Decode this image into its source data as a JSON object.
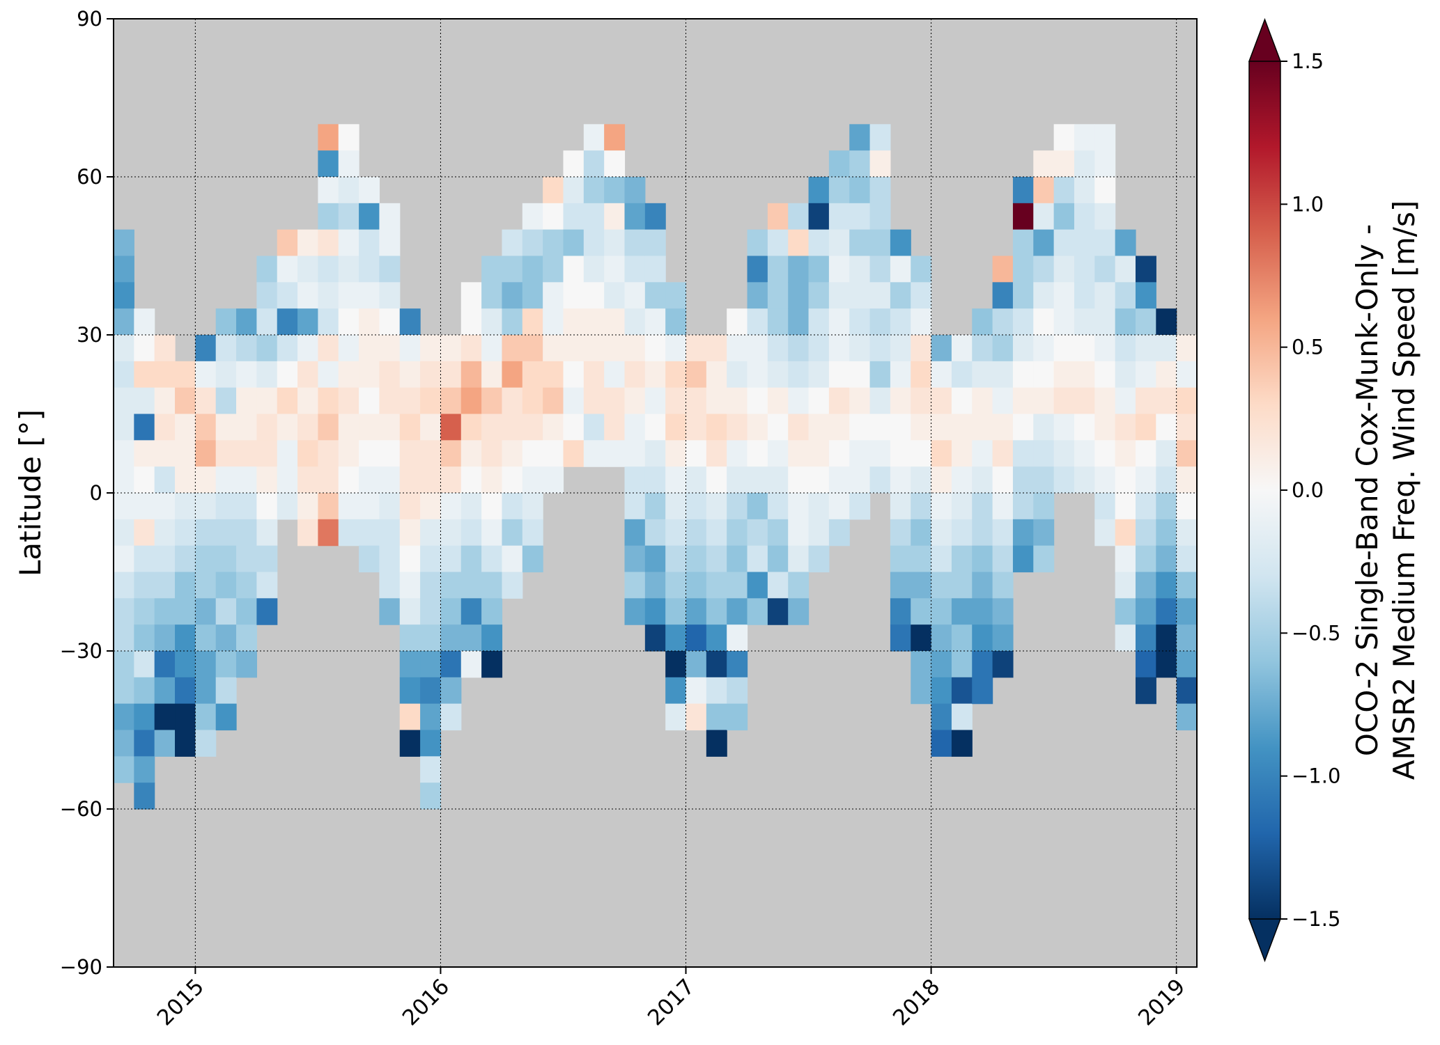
{
  "chart_data": {
    "type": "heatmap",
    "title": "",
    "xlabel": "",
    "ylabel": "Latitude [°]",
    "xlim": [
      "2014-09-01",
      "2019-02-01"
    ],
    "ylim": [
      -90,
      90
    ],
    "x_ticks": [
      "2015",
      "2016",
      "2017",
      "2018",
      "2019"
    ],
    "y_ticks": [
      90,
      60,
      30,
      0,
      -30,
      -60,
      -90
    ],
    "grid": true,
    "background_color": "#c8c8c8",
    "colormap": "RdBu_r",
    "colorbar": {
      "label_line1": "OCO-2 Single-Band Cox-Munk-Only -",
      "label_line2": "AMSR2 Medium Freq. Wind Speed [m/s]",
      "vmin": -1.5,
      "vmax": 1.5,
      "extend": "both",
      "ticks": [
        "1.5",
        "1.0",
        "0.5",
        "0.0",
        "−0.5",
        "−1.0",
        "−1.5"
      ]
    },
    "cell_height_deg": 5,
    "columns": [
      {
        "month": "2014-09",
        "lat_max": 50,
        "values": [
          -0.7,
          -0.8,
          -0.9,
          -0.7,
          -0.2,
          -0.3,
          -0.2,
          -0.2,
          -0.1,
          -0.1,
          -0.1,
          -0.2,
          -0.1,
          -0.3,
          -0.4,
          -0.4,
          -0.5,
          -0.5,
          -0.8,
          -0.7,
          -0.6
        ]
      },
      {
        "month": "2014-10",
        "lat_max": 35,
        "values": [
          -0.1,
          0.0,
          0.3,
          -0.2,
          -1.1,
          0.1,
          0.0,
          -0.1,
          0.2,
          -0.3,
          -0.4,
          -0.5,
          -0.6,
          -0.3,
          -0.6,
          -0.9,
          -1.1,
          -0.8,
          -1.0
        ]
      },
      {
        "month": "2014-11",
        "lat_max": 30,
        "values": [
          0.2,
          0.3,
          0.1,
          0.2,
          0.1,
          -0.3,
          -0.1,
          -0.2,
          -0.3,
          -0.4,
          -0.6,
          -0.7,
          -1.1,
          -0.8,
          -1.5,
          -0.7
        ]
      },
      {
        "month": "2014-12",
        "lat_max": 25,
        "values": [
          0.3,
          0.4,
          0.1,
          0.1,
          0.1,
          -0.2,
          -0.3,
          -0.4,
          -0.6,
          -0.6,
          -0.9,
          -0.9,
          -1.1,
          -1.5,
          -1.6
        ]
      },
      {
        "month": "2015-01",
        "lat_max": 30,
        "values": [
          -1.0,
          -0.1,
          0.2,
          0.4,
          0.5,
          0.1,
          -0.2,
          -0.4,
          -0.5,
          -0.5,
          -0.7,
          -0.6,
          -0.8,
          -0.8,
          -0.6,
          -0.4
        ]
      },
      {
        "month": "2015-02",
        "lat_max": 35,
        "values": [
          -0.6,
          -0.3,
          -0.2,
          -0.4,
          0.1,
          0.2,
          -0.1,
          -0.3,
          -0.4,
          -0.5,
          -0.6,
          -0.4,
          -0.7,
          -0.6,
          -0.4,
          -0.9
        ]
      },
      {
        "month": "2015-03",
        "lat_max": 35,
        "values": [
          -0.8,
          -0.4,
          -0.1,
          0.1,
          0.1,
          0.2,
          -0.1,
          -0.3,
          -0.4,
          -0.4,
          -0.5,
          -0.6,
          -0.5,
          -0.7
        ]
      },
      {
        "month": "2015-04",
        "lat_max": 45,
        "values": [
          -0.5,
          -0.4,
          -0.3,
          -0.5,
          -0.2,
          0.1,
          0.2,
          0.2,
          0.1,
          0.0,
          -0.2,
          -0.4,
          -0.3,
          -1.1
        ]
      },
      {
        "month": "2015-05",
        "lat_max": 50,
        "values": [
          0.4,
          -0.1,
          -0.3,
          -1.0,
          -0.3,
          0.0,
          0.3,
          0.1,
          -0.1,
          -0.1,
          -0.2
        ]
      },
      {
        "month": "2015-06",
        "lat_max": 50,
        "values": [
          0.1,
          -0.2,
          -0.1,
          -0.8,
          -0.1,
          0.2,
          0.1,
          0.2,
          0.3,
          0.2,
          0.1,
          0.2
        ]
      },
      {
        "month": "2015-07",
        "lat_max": 70,
        "values": [
          0.6,
          -0.9,
          -0.1,
          -0.5,
          0.2,
          -0.3,
          -0.2,
          -0.3,
          0.2,
          -0.1,
          0.3,
          0.4,
          0.2,
          0.2,
          0.4,
          0.8
        ]
      },
      {
        "month": "2015-08",
        "lat_max": 70,
        "values": [
          0.0,
          -0.1,
          -0.2,
          -0.4,
          -0.1,
          -0.2,
          -0.1,
          0.0,
          -0.1,
          0.1,
          0.2,
          0.1,
          0.1,
          0.0,
          -0.1,
          -0.3
        ]
      },
      {
        "month": "2015-09",
        "lat_max": 60,
        "values": [
          -0.1,
          -0.9,
          -0.3,
          -0.3,
          -0.1,
          0.1,
          0.1,
          0.1,
          0.0,
          0.1,
          0.0,
          -0.1,
          -0.1,
          -0.3,
          -0.4
        ]
      },
      {
        "month": "2015-10",
        "lat_max": 55,
        "values": [
          -0.1,
          -0.1,
          -0.4,
          -0.2,
          0.0,
          0.1,
          0.2,
          0.2,
          0.1,
          0.0,
          -0.1,
          -0.2,
          -0.3,
          -0.3,
          -0.3,
          -0.7
        ]
      },
      {
        "month": "2015-11",
        "lat_max": 35,
        "values": [
          -1.0,
          -0.1,
          0.1,
          0.2,
          0.3,
          0.2,
          0.2,
          0.2,
          0.1,
          0.0,
          -0.1,
          -0.2,
          -0.5,
          -0.8,
          -0.9,
          0.3,
          -1.5
        ]
      },
      {
        "month": "2015-12",
        "lat_max": 30,
        "values": [
          0.1,
          0.2,
          0.3,
          0.1,
          0.2,
          0.2,
          0.1,
          -0.2,
          -0.3,
          -0.4,
          -0.4,
          -0.5,
          -0.8,
          -1.0,
          -0.8,
          -0.9,
          -0.3,
          -0.5
        ]
      },
      {
        "month": "2016-01",
        "lat_max": 30,
        "values": [
          0.1,
          0.2,
          0.4,
          0.9,
          0.4,
          0.2,
          -0.1,
          -0.2,
          -0.3,
          -0.5,
          -0.6,
          -0.7,
          -1.1,
          -0.7,
          -0.3
        ]
      },
      {
        "month": "2016-02",
        "lat_max": 40,
        "values": [
          0.0,
          0.0,
          0.2,
          0.5,
          0.6,
          0.3,
          0.1,
          0.0,
          -0.2,
          -0.3,
          -0.5,
          -0.5,
          -1.0,
          -0.7,
          -0.1
        ]
      },
      {
        "month": "2016-03",
        "lat_max": 45,
        "values": [
          -0.5,
          -0.5,
          -0.2,
          -0.1,
          0.1,
          0.4,
          0.2,
          0.2,
          0.1,
          0.0,
          -0.1,
          -0.3,
          -0.5,
          -0.6,
          -0.9,
          -1.5
        ]
      },
      {
        "month": "2016-04",
        "lat_max": 50,
        "values": [
          -0.3,
          -0.5,
          -0.7,
          -0.5,
          0.4,
          0.6,
          0.2,
          0.2,
          0.1,
          0.0,
          -0.3,
          -0.5,
          -0.1,
          -0.3
        ]
      },
      {
        "month": "2016-05",
        "lat_max": 55,
        "values": [
          -0.1,
          -0.4,
          -0.6,
          -0.6,
          0.3,
          0.4,
          0.3,
          0.3,
          0.2,
          0.0,
          -0.1,
          -0.2,
          -0.3,
          -0.6
        ]
      },
      {
        "month": "2016-06",
        "lat_max": 60,
        "values": [
          0.3,
          0.0,
          -0.5,
          -0.5,
          -0.1,
          -0.1,
          0.1,
          0.3,
          0.4,
          0.1,
          0.0,
          -0.1
        ]
      },
      {
        "month": "2016-07",
        "lat_max": 65,
        "values": [
          0.0,
          -0.2,
          -0.3,
          -0.6,
          0.0,
          0.0,
          0.1,
          0.1,
          0.0,
          -0.1,
          0.0,
          0.3
        ]
      },
      {
        "month": "2016-08",
        "lat_max": 70,
        "values": [
          -0.1,
          -0.4,
          -0.5,
          -0.3,
          -0.3,
          -0.2,
          0.0,
          0.1,
          0.1,
          0.2,
          0.2,
          -0.3,
          -0.1
        ]
      },
      {
        "month": "2016-09",
        "lat_max": 70,
        "values": [
          0.6,
          0.0,
          -0.6,
          0.1,
          -0.2,
          -0.1,
          -0.2,
          0.1,
          0.1,
          -0.1,
          0.2,
          0.2,
          -0.1
        ]
      },
      {
        "month": "2016-10",
        "lat_max": 60,
        "values": [
          -0.7,
          -0.8,
          -0.4,
          -0.3,
          -0.1,
          -0.2,
          0.1,
          0.2,
          0.1,
          -0.1,
          -0.1,
          -0.3,
          -0.3,
          -0.8,
          -0.7,
          -0.5,
          -0.8
        ]
      },
      {
        "month": "2016-11",
        "lat_max": 55,
        "values": [
          -1.0,
          -0.4,
          -0.3,
          -0.5,
          -0.1,
          0.0,
          0.1,
          -0.1,
          0.0,
          -0.2,
          -0.3,
          -0.5,
          -0.4,
          -0.8,
          -0.7,
          -0.9,
          -1.4
        ]
      },
      {
        "month": "2016-12",
        "lat_max": 40,
        "values": [
          -0.5,
          -0.6,
          -0.1,
          0.3,
          0.2,
          0.3,
          0.1,
          -0.1,
          -0.2,
          -0.3,
          -0.4,
          -0.5,
          -0.6,
          -0.9,
          -1.5,
          -0.9,
          -0.2
        ]
      },
      {
        "month": "2017-01",
        "lat_max": 30,
        "values": [
          0.2,
          0.4,
          0.2,
          0.2,
          0.0,
          -0.2,
          -0.3,
          -0.4,
          -0.5,
          -0.6,
          -0.8,
          -1.2,
          -0.7,
          -0.1,
          0.2
        ]
      },
      {
        "month": "2017-02",
        "lat_max": 30,
        "values": [
          0.2,
          0.1,
          0.1,
          0.3,
          0.2,
          0.0,
          -0.2,
          -0.3,
          -0.4,
          -0.5,
          -0.6,
          -0.9,
          -1.4,
          -0.3,
          -0.6,
          -1.5
        ]
      },
      {
        "month": "2017-03",
        "lat_max": 35,
        "values": [
          0.0,
          -0.1,
          -0.2,
          0.1,
          0.2,
          -0.1,
          -0.2,
          -0.4,
          -0.5,
          -0.6,
          -0.5,
          -0.8,
          -0.1,
          -1.0,
          -0.4,
          -0.6
        ]
      },
      {
        "month": "2017-04",
        "lat_max": 50,
        "values": [
          -0.5,
          -1.0,
          -0.7,
          -0.3,
          -0.1,
          -0.1,
          0.0,
          0.1,
          0.0,
          -0.2,
          -0.6,
          -0.4,
          -0.3,
          -0.9,
          -0.6
        ]
      },
      {
        "month": "2017-05",
        "lat_max": 55,
        "values": [
          0.4,
          -0.3,
          -0.5,
          -0.5,
          -0.5,
          -0.3,
          -0.2,
          0.1,
          0.0,
          -0.1,
          -0.2,
          -0.3,
          -0.5,
          -0.6,
          -0.3,
          -1.4
        ]
      },
      {
        "month": "2017-06",
        "lat_max": 55,
        "values": [
          -0.4,
          0.3,
          -0.7,
          -0.7,
          -0.7,
          -0.4,
          -0.3,
          -0.1,
          0.2,
          0.1,
          0.0,
          -0.1,
          -0.1,
          -0.2,
          -0.5,
          -0.7
        ]
      },
      {
        "month": "2017-07",
        "lat_max": 60,
        "values": [
          -0.9,
          -1.4,
          -0.3,
          -0.6,
          -0.5,
          -0.3,
          -0.3,
          -0.2,
          0.0,
          0.1,
          0.1,
          0.0,
          -0.2,
          -0.2,
          -0.4
        ]
      },
      {
        "month": "2017-08",
        "lat_max": 65,
        "values": [
          -0.6,
          -0.5,
          -0.3,
          -0.2,
          -0.1,
          -0.2,
          -0.1,
          -0.1,
          0.0,
          0.2,
          0.1,
          0.0,
          -0.1,
          -0.1,
          -0.4
        ]
      },
      {
        "month": "2017-09",
        "lat_max": 70,
        "values": [
          -0.8,
          -0.5,
          -0.6,
          -0.3,
          -0.5,
          -0.2,
          -0.2,
          -0.3,
          -0.2,
          0.0,
          0.1,
          0.0,
          -0.1,
          -0.1,
          -0.3
        ]
      },
      {
        "month": "2017-10",
        "lat_max": 70,
        "values": [
          -0.3,
          0.1,
          -0.4,
          -0.4,
          -0.5,
          -0.4,
          -0.2,
          -0.4,
          -0.3,
          -0.5,
          -0.2,
          0.0,
          -0.1,
          -0.3
        ]
      },
      {
        "month": "2017-11",
        "lat_max": 50,
        "values": [
          -0.9,
          -0.1,
          -0.5,
          -0.3,
          -0.2,
          -0.1,
          0.1,
          0.0,
          0.0,
          -0.1,
          -0.2,
          -0.4,
          -0.5,
          -0.7,
          -1.0,
          -1.1
        ]
      },
      {
        "month": "2017-12",
        "lat_max": 45,
        "values": [
          -0.5,
          -0.3,
          -0.1,
          0.2,
          0.3,
          0.2,
          0.1,
          0.0,
          -0.2,
          -0.4,
          -0.6,
          -0.5,
          -0.7,
          -0.6,
          -1.5,
          -0.7,
          -0.7
        ]
      },
      {
        "month": "2018-01",
        "lat_max": 30,
        "values": [
          -0.7,
          -0.1,
          0.2,
          0.1,
          0.3,
          0.1,
          -0.1,
          -0.2,
          -0.3,
          -0.5,
          -0.6,
          -0.7,
          -0.8,
          -0.9,
          -1.0,
          -1.2
        ]
      },
      {
        "month": "2018-02",
        "lat_max": 30,
        "values": [
          -0.1,
          -0.3,
          0.0,
          0.1,
          0.1,
          -0.1,
          -0.2,
          -0.3,
          -0.5,
          -0.5,
          -0.8,
          -0.6,
          -0.6,
          -1.3,
          -0.3,
          -1.5
        ]
      },
      {
        "month": "2018-03",
        "lat_max": 35,
        "values": [
          -0.6,
          -0.4,
          -0.2,
          0.1,
          0.1,
          -0.1,
          -0.2,
          -0.4,
          -0.4,
          -0.6,
          -0.7,
          -0.8,
          -0.9,
          -1.1,
          -1.1
        ]
      },
      {
        "month": "2018-04",
        "lat_max": 45,
        "values": [
          0.5,
          -1.0,
          -0.4,
          -0.5,
          -0.2,
          -0.1,
          0.1,
          0.2,
          0.0,
          -0.1,
          -0.3,
          -0.4,
          -0.5,
          -0.7,
          -0.8,
          -1.4
        ]
      },
      {
        "month": "2018-05",
        "lat_max": 60,
        "values": [
          -1.0,
          1.5,
          -0.5,
          -0.5,
          -0.5,
          -0.3,
          -0.2,
          0.0,
          0.1,
          0.0,
          -0.3,
          -0.4,
          -0.4,
          -0.8,
          -0.9
        ]
      },
      {
        "month": "2018-06",
        "lat_max": 65,
        "values": [
          0.1,
          0.4,
          -0.2,
          -0.8,
          -0.4,
          -0.2,
          0.0,
          -0.1,
          0.0,
          0.1,
          -0.2,
          -0.3,
          -0.4,
          -0.5,
          -0.7,
          -0.5
        ]
      },
      {
        "month": "2018-07",
        "lat_max": 70,
        "values": [
          0.0,
          0.1,
          -0.4,
          -0.6,
          -0.3,
          -0.2,
          -0.1,
          -0.1,
          0.0,
          0.1,
          0.2,
          -0.1,
          -0.2,
          -0.3
        ]
      },
      {
        "month": "2018-08",
        "lat_max": 70,
        "values": [
          -0.1,
          -0.2,
          -0.2,
          -0.3,
          -0.3,
          -0.3,
          -0.3,
          -0.2,
          0.0,
          0.1,
          0.2,
          0.0,
          -0.1,
          -0.2
        ]
      },
      {
        "month": "2018-09",
        "lat_max": 70,
        "values": [
          -0.1,
          -0.1,
          0.0,
          -0.2,
          -0.3,
          -0.4,
          -0.2,
          -0.2,
          -0.1,
          0.0,
          0.1,
          0.1,
          0.0,
          -0.1,
          -0.3,
          -0.2
        ]
      },
      {
        "month": "2018-10",
        "lat_max": 50,
        "values": [
          -0.8,
          -0.2,
          -0.4,
          -0.6,
          -0.3,
          -0.2,
          -0.1,
          0.2,
          0.1,
          0.0,
          0.0,
          0.3,
          -0.1,
          -0.2,
          -0.6,
          -0.2
        ]
      },
      {
        "month": "2018-11",
        "lat_max": 45,
        "values": [
          -1.4,
          -0.9,
          -0.5,
          -0.2,
          -0.1,
          0.2,
          0.3,
          0.0,
          -0.1,
          -0.3,
          -0.4,
          -0.5,
          -0.7,
          -0.8,
          -1.0,
          -1.2,
          -1.4
        ]
      },
      {
        "month": "2018-12",
        "lat_max": 35,
        "values": [
          -1.5,
          -0.2,
          0.1,
          0.2,
          0.0,
          -0.2,
          -0.3,
          -0.5,
          -0.6,
          -0.7,
          -0.9,
          -1.1,
          -1.5,
          -1.5
        ]
      },
      {
        "month": "2019-01",
        "lat_max": 30,
        "values": [
          0.1,
          -0.1,
          0.3,
          0.2,
          0.4,
          0.1,
          0.0,
          -0.2,
          -0.3,
          -0.6,
          -0.8,
          -0.7,
          -0.8,
          -1.3,
          -0.7
        ]
      }
    ]
  }
}
